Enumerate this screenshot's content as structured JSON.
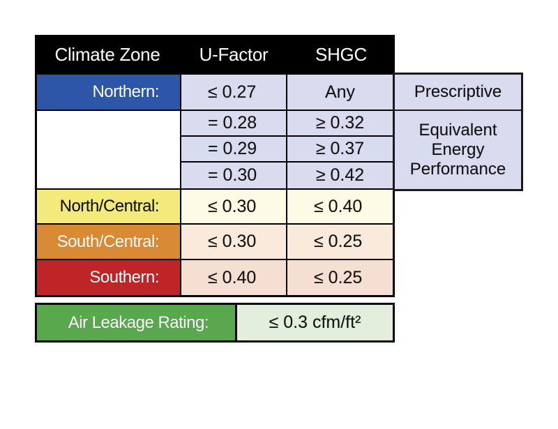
{
  "table": {
    "headers": [
      "Climate Zone",
      "U-Factor",
      "SHGC"
    ],
    "northern": {
      "zone": "Northern:",
      "u_factor": "≤ 0.27",
      "shgc": "Any"
    },
    "equivalent_rows": [
      {
        "u_factor": "= 0.28",
        "shgc": "≥ 0.32"
      },
      {
        "u_factor": "= 0.29",
        "shgc": "≥ 0.37"
      },
      {
        "u_factor": "= 0.30",
        "shgc": "≥ 0.42"
      }
    ],
    "zones": [
      {
        "zone": "North/Central:",
        "u_factor": "≤ 0.30",
        "shgc": "≤ 0.40"
      },
      {
        "zone": "South/Central:",
        "u_factor": "≤ 0.30",
        "shgc": "≤ 0.25"
      },
      {
        "zone": "Southern:",
        "u_factor": "≤ 0.40",
        "shgc": "≤ 0.25"
      }
    ]
  },
  "side_notes": {
    "prescriptive": "Prescriptive",
    "equivalent_line1": "Equivalent",
    "equivalent_line2": "Energy",
    "equivalent_line3": "Performance"
  },
  "air_leakage": {
    "label": "Air Leakage Rating:",
    "value": "≤ 0.3 cfm/ft²"
  },
  "colors": {
    "header_bg": "#000000",
    "northern": "#2d56a8",
    "north_central": "#f4ea7c",
    "south_central": "#d98a34",
    "southern": "#bf2527",
    "air_label": "#5aa84e",
    "northern_values": "#d9dcef",
    "north_central_values": "#fdfbe5",
    "south_central_values": "#faeadc",
    "southern_values": "#f5dfd2",
    "air_value": "#e3efdc"
  }
}
